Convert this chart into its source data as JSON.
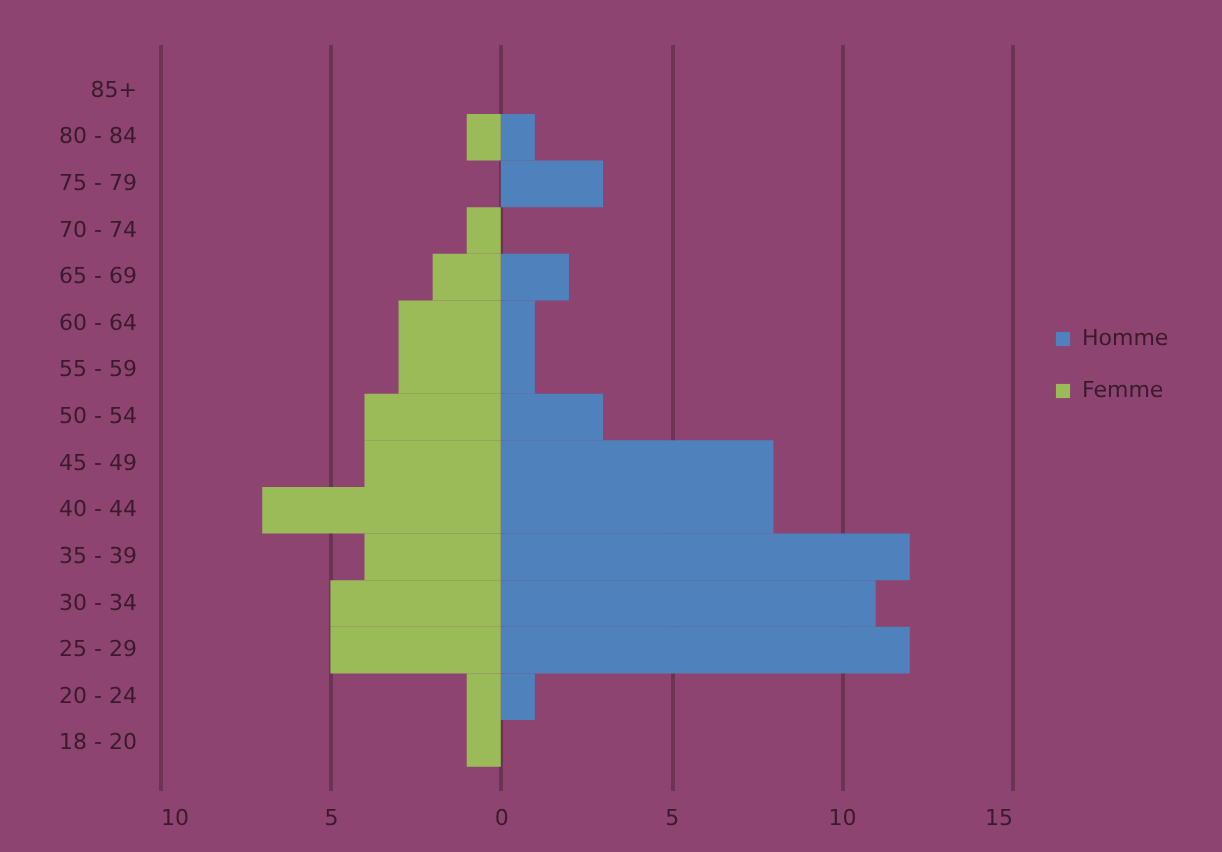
{
  "chart_data": {
    "type": "bar",
    "orientation": "horizontal",
    "stacked": true,
    "categories": [
      "85+",
      "80 - 84",
      "75 - 79",
      "70 - 74",
      "65 - 69",
      "60 - 64",
      "55 - 59",
      "50 - 54",
      "45 - 49",
      "40 - 44",
      "35 - 39",
      "30 - 34",
      "25 - 29",
      "20 - 24",
      "18 - 20"
    ],
    "series": [
      {
        "name": "Homme",
        "color": "#4f81bd",
        "values": [
          0,
          1,
          3,
          0,
          2,
          1,
          1,
          3,
          8,
          8,
          12,
          11,
          12,
          1,
          0
        ]
      },
      {
        "name": "Femme",
        "color": "#9bbb59",
        "values": [
          0,
          -1,
          0,
          -1,
          -2,
          -3,
          -3,
          -4,
          -4,
          -7,
          -4,
          -5,
          -5,
          -1,
          -1
        ]
      }
    ],
    "xlim": [
      -10,
      15
    ],
    "xticks": [
      {
        "value": -10,
        "label": "10"
      },
      {
        "value": -5,
        "label": "5"
      },
      0,
      5,
      10,
      15
    ],
    "grid": "x",
    "legend": "right"
  }
}
